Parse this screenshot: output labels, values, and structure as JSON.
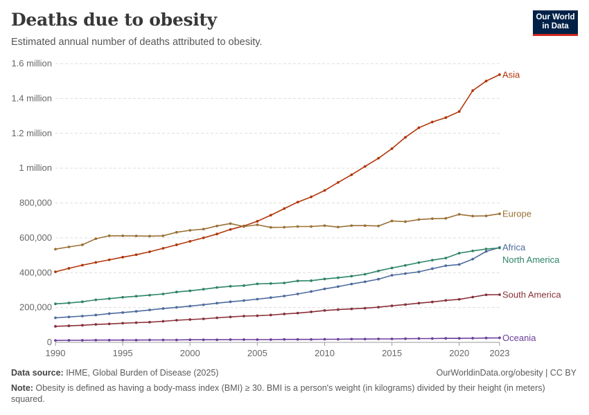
{
  "header": {
    "title": "Deaths due to obesity",
    "subtitle": "Estimated annual number of deaths attributed to obesity.",
    "logo_line1": "Our World",
    "logo_line2": "in Data"
  },
  "footer": {
    "source_label": "Data source:",
    "source_text": " IHME, Global Burden of Disease (2025)",
    "credit": "OurWorldinData.org/obesity | CC BY",
    "note_label": "Note:",
    "note_text": " Obesity is defined as having a body-mass index (BMI) ≥ 30. BMI is a person's weight (in kilograms) divided by their height (in meters) squared."
  },
  "colors": {
    "Asia": "#b13507",
    "Europe": "#9a7034",
    "Africa": "#4c6a9c",
    "North America": "#2c8465",
    "South America": "#883039",
    "Oceania": "#6a3d9a",
    "grid": "#dddddd"
  },
  "chart_data": {
    "type": "line",
    "title": "Deaths due to obesity",
    "xlim": [
      1990,
      2023
    ],
    "ylim": [
      0,
      1600000
    ],
    "x_ticks": [
      "1990",
      "1995",
      "2000",
      "2005",
      "2010",
      "2015",
      "2020",
      "2023"
    ],
    "y_ticks": [
      {
        "value": 0,
        "label": "0"
      },
      {
        "value": 200000,
        "label": "200,000"
      },
      {
        "value": 400000,
        "label": "400,000"
      },
      {
        "value": 600000,
        "label": "600,000"
      },
      {
        "value": 800000,
        "label": "800,000"
      },
      {
        "value": 1000000,
        "label": "1 million"
      },
      {
        "value": 1200000,
        "label": "1.2 million"
      },
      {
        "value": 1400000,
        "label": "1.4 million"
      },
      {
        "value": 1600000,
        "label": "1.6 million"
      }
    ],
    "x": [
      1990,
      1991,
      1992,
      1993,
      1994,
      1995,
      1996,
      1997,
      1998,
      1999,
      2000,
      2001,
      2002,
      2003,
      2004,
      2005,
      2006,
      2007,
      2008,
      2009,
      2010,
      2011,
      2012,
      2013,
      2014,
      2015,
      2016,
      2017,
      2018,
      2019,
      2020,
      2021,
      2022,
      2023
    ],
    "series": [
      {
        "name": "Asia",
        "values": [
          405000,
          425000,
          443000,
          459000,
          474000,
          489000,
          503000,
          520000,
          540000,
          560000,
          580000,
          600000,
          622000,
          648000,
          668000,
          695000,
          730000,
          768000,
          805000,
          835000,
          872000,
          918000,
          962000,
          1010000,
          1057000,
          1112000,
          1177000,
          1232000,
          1265000,
          1290000,
          1325000,
          1445000,
          1500000,
          1537000
        ]
      },
      {
        "name": "Europe",
        "values": [
          535000,
          548000,
          560000,
          595000,
          612000,
          612000,
          611000,
          610000,
          612000,
          632000,
          643000,
          650000,
          668000,
          682000,
          665000,
          675000,
          660000,
          661000,
          665000,
          665000,
          670000,
          662000,
          670000,
          670000,
          668000,
          697000,
          693000,
          705000,
          710000,
          712000,
          735000,
          725000,
          726000,
          738000
        ]
      },
      {
        "name": "Africa",
        "values": [
          141000,
          146000,
          151000,
          157000,
          165000,
          171000,
          178000,
          186000,
          194000,
          201000,
          208000,
          216000,
          225000,
          233000,
          240000,
          248000,
          257000,
          266000,
          278000,
          292000,
          307000,
          320000,
          335000,
          348000,
          363000,
          385000,
          395000,
          405000,
          423000,
          440000,
          447000,
          478000,
          522000,
          545000
        ]
      },
      {
        "name": "North America",
        "values": [
          221000,
          226000,
          233000,
          244000,
          251000,
          259000,
          265000,
          271000,
          278000,
          289000,
          296000,
          305000,
          315000,
          322000,
          326000,
          336000,
          338000,
          341000,
          353000,
          354000,
          364000,
          371000,
          380000,
          391000,
          410000,
          427000,
          442000,
          458000,
          472000,
          484000,
          512000,
          525000,
          536000,
          542000
        ]
      },
      {
        "name": "South America",
        "values": [
          92000,
          95000,
          98000,
          103000,
          106000,
          110000,
          113000,
          116000,
          121000,
          127000,
          131000,
          135000,
          141000,
          146000,
          151000,
          153000,
          157000,
          163000,
          168000,
          175000,
          183000,
          188000,
          192000,
          196000,
          202000,
          210000,
          217000,
          225000,
          232000,
          241000,
          247000,
          260000,
          273000,
          274000
        ]
      },
      {
        "name": "Oceania",
        "values": [
          11000,
          12000,
          12000,
          13000,
          13000,
          13000,
          13000,
          14000,
          14000,
          14000,
          15000,
          15000,
          15000,
          16000,
          16000,
          16000,
          16000,
          17000,
          17000,
          17000,
          18000,
          18000,
          19000,
          19000,
          20000,
          20000,
          21000,
          22000,
          22000,
          23000,
          23000,
          24000,
          25000,
          26000
        ]
      }
    ]
  }
}
